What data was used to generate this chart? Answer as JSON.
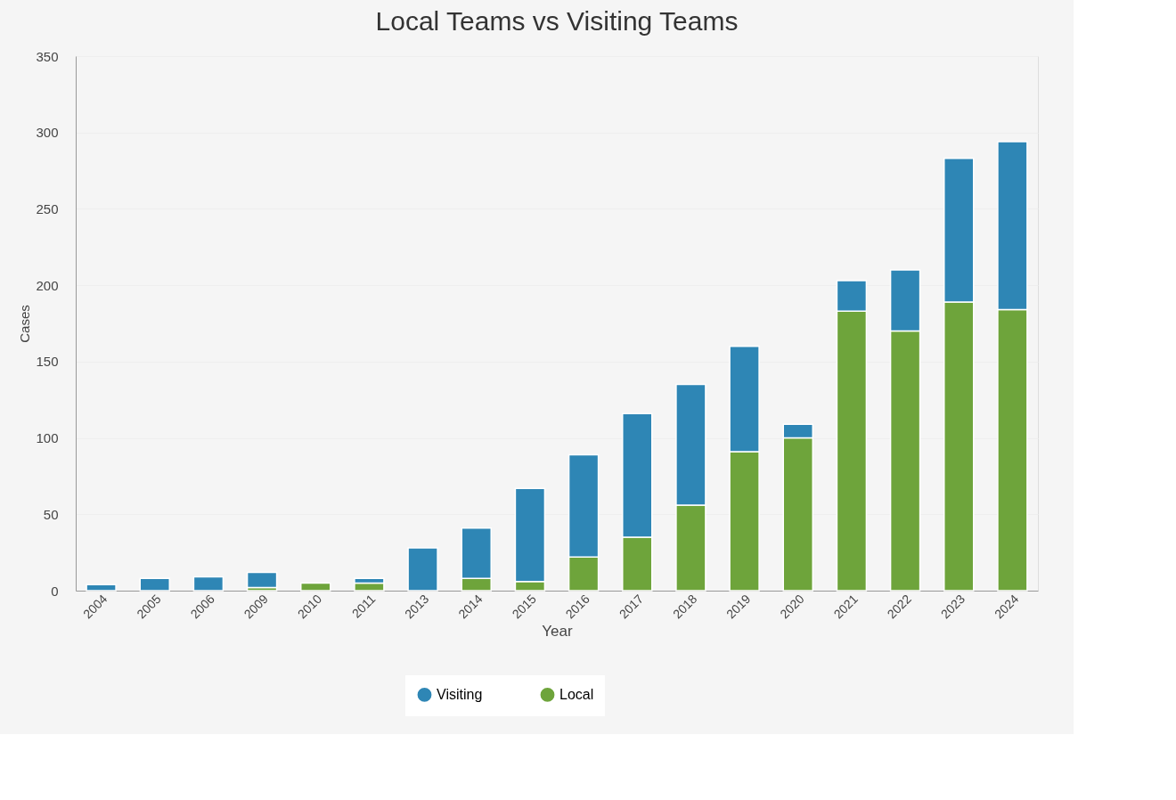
{
  "chart_data": {
    "type": "bar",
    "title": "Local Teams vs Visiting Teams",
    "xlabel": "Year",
    "ylabel": "Cases",
    "categories": [
      "2004",
      "2005",
      "2006",
      "2009",
      "2010",
      "2011",
      "2013",
      "2014",
      "2015",
      "2016",
      "2017",
      "2018",
      "2019",
      "2020",
      "2021",
      "2022",
      "2023",
      "2024"
    ],
    "series": [
      {
        "name": "Local",
        "color": "#6ea43b",
        "values": [
          0,
          0,
          0,
          2,
          5,
          5,
          0,
          8,
          6,
          22,
          35,
          56,
          91,
          100,
          183,
          170,
          189,
          184
        ]
      },
      {
        "name": "Visiting",
        "color": "#2e86b5",
        "values": [
          4,
          8,
          9,
          10,
          0,
          3,
          28,
          33,
          61,
          67,
          81,
          79,
          69,
          9,
          20,
          40,
          94,
          110
        ]
      }
    ],
    "stacked": true,
    "ylim": [
      0,
      350
    ],
    "yticks": [
      0,
      50,
      100,
      150,
      200,
      250,
      300,
      350
    ],
    "grid": "y",
    "legend": "bottom"
  }
}
